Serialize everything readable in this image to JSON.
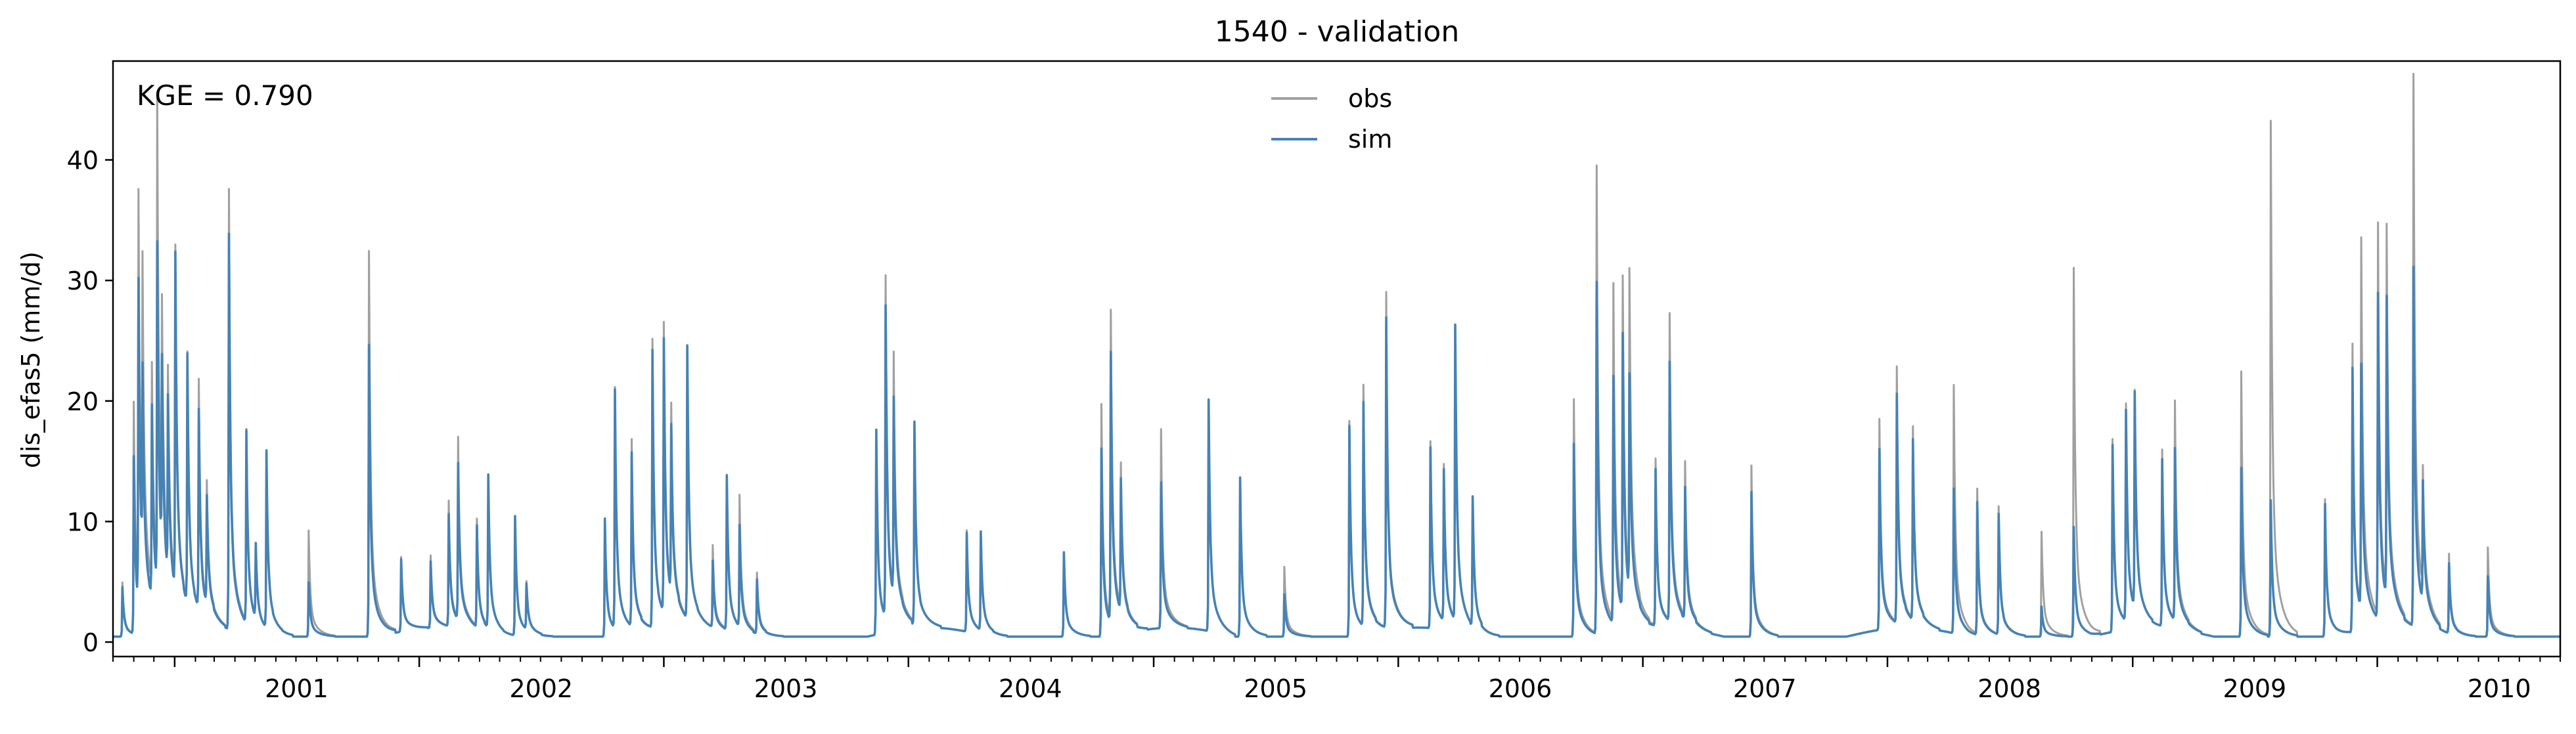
{
  "chart_data": {
    "type": "line",
    "title": "1540 - validation",
    "ylabel": "dis_efas5 (mm/d)",
    "xlabel": "",
    "annotation": "KGE = 0.790",
    "x_range": [
      "2000-10-01",
      "2010-10-01"
    ],
    "ylim": [
      -1.2,
      48.2
    ],
    "y_ticks": [
      0,
      10,
      20,
      30,
      40
    ],
    "x_tick_labels": [
      "2001",
      "2002",
      "2003",
      "2004",
      "2005",
      "2006",
      "2007",
      "2008",
      "2009",
      "2010"
    ],
    "grid": false,
    "legend_position": "top-center",
    "colors": {
      "obs": "#a0a0a0",
      "sim": "#4682b4"
    },
    "series": [
      {
        "name": "obs",
        "peaks": [
          [
            "2000-10-15",
            4.5
          ],
          [
            "2000-11-01",
            19.2
          ],
          [
            "2000-11-08",
            33.6
          ],
          [
            "2000-11-14",
            23.3
          ],
          [
            "2000-11-28",
            18.5
          ],
          [
            "2000-12-06",
            39.8
          ],
          [
            "2000-12-13",
            18.8
          ],
          [
            "2000-12-22",
            16.0
          ],
          [
            "2001-01-02",
            28.0
          ],
          [
            "2001-01-20",
            20.8
          ],
          [
            "2001-02-06",
            19.0
          ],
          [
            "2001-02-18",
            10.0
          ],
          [
            "2001-03-23",
            36.5
          ],
          [
            "2001-04-18",
            16.0
          ],
          [
            "2001-05-02",
            6.5
          ],
          [
            "2001-05-18",
            14.7
          ],
          [
            "2001-07-20",
            8.8
          ],
          [
            "2001-10-18",
            32.0
          ],
          [
            "2001-12-05",
            6.2
          ],
          [
            "2002-01-18",
            6.0
          ],
          [
            "2002-02-14",
            10.4
          ],
          [
            "2002-02-28",
            15.1
          ],
          [
            "2002-03-28",
            9.0
          ],
          [
            "2002-04-14",
            12.7
          ],
          [
            "2002-05-24",
            10.0
          ],
          [
            "2002-06-10",
            4.0
          ],
          [
            "2002-10-05",
            9.8
          ],
          [
            "2002-10-20",
            20.0
          ],
          [
            "2002-11-14",
            15.6
          ],
          [
            "2002-12-15",
            23.9
          ],
          [
            "2003-01-01",
            24.0
          ],
          [
            "2003-01-12",
            15.6
          ],
          [
            "2003-02-05",
            22.6
          ],
          [
            "2003-03-15",
            6.8
          ],
          [
            "2003-04-05",
            12.8
          ],
          [
            "2003-04-24",
            11.0
          ],
          [
            "2003-05-20",
            5.0
          ],
          [
            "2003-11-14",
            17.0
          ],
          [
            "2003-11-28",
            28.3
          ],
          [
            "2003-12-10",
            20.0
          ],
          [
            "2004-01-10",
            16.8
          ],
          [
            "2004-03-28",
            8.4
          ],
          [
            "2004-04-18",
            8.2
          ],
          [
            "2004-08-20",
            7.0
          ],
          [
            "2004-10-15",
            19.3
          ],
          [
            "2004-10-29",
            25.6
          ],
          [
            "2004-11-13",
            12.0
          ],
          [
            "2005-01-12",
            16.5
          ],
          [
            "2005-03-24",
            19.2
          ],
          [
            "2005-05-10",
            13.2
          ],
          [
            "2005-07-15",
            5.8
          ],
          [
            "2005-10-20",
            17.9
          ],
          [
            "2005-11-10",
            20.0
          ],
          [
            "2005-12-14",
            27.8
          ],
          [
            "2006-02-18",
            15.5
          ],
          [
            "2006-03-10",
            13.0
          ],
          [
            "2006-03-27",
            24.5
          ],
          [
            "2006-04-22",
            10.8
          ],
          [
            "2006-09-20",
            19.7
          ],
          [
            "2006-10-24",
            38.8
          ],
          [
            "2006-11-18",
            27.9
          ],
          [
            "2006-12-02",
            27.0
          ],
          [
            "2006-12-12",
            26.0
          ],
          [
            "2007-01-20",
            13.8
          ],
          [
            "2007-02-10",
            25.5
          ],
          [
            "2007-03-05",
            13.0
          ],
          [
            "2007-06-12",
            14.2
          ],
          [
            "2007-12-20",
            17.5
          ],
          [
            "2008-01-15",
            21.2
          ],
          [
            "2008-02-08",
            16.0
          ],
          [
            "2008-04-09",
            20.6
          ],
          [
            "2008-05-14",
            12.0
          ],
          [
            "2008-06-15",
            10.6
          ],
          [
            "2008-08-18",
            8.7
          ],
          [
            "2008-10-05",
            30.6
          ],
          [
            "2008-12-02",
            16.0
          ],
          [
            "2008-12-22",
            18.0
          ],
          [
            "2009-01-04",
            18.0
          ],
          [
            "2009-02-14",
            14.8
          ],
          [
            "2009-03-05",
            18.2
          ],
          [
            "2009-06-12",
            22.0
          ],
          [
            "2009-07-26",
            42.8
          ],
          [
            "2009-10-15",
            11.4
          ],
          [
            "2009-11-25",
            24.0
          ],
          [
            "2009-12-08",
            30.6
          ],
          [
            "2010-01-02",
            32.5
          ],
          [
            "2010-01-15",
            30.4
          ],
          [
            "2010-02-24",
            46.0
          ],
          [
            "2010-03-10",
            10.0
          ],
          [
            "2010-04-18",
            6.6
          ],
          [
            "2010-06-15",
            7.4
          ]
        ]
      },
      {
        "name": "sim",
        "peaks": [
          [
            "2000-10-15",
            4.1
          ],
          [
            "2000-11-01",
            14.7
          ],
          [
            "2000-11-08",
            27.0
          ],
          [
            "2000-11-14",
            15.8
          ],
          [
            "2000-11-28",
            16.0
          ],
          [
            "2000-12-06",
            28.5
          ],
          [
            "2000-12-13",
            16.2
          ],
          [
            "2000-12-22",
            14.8
          ],
          [
            "2001-01-02",
            28.0
          ],
          [
            "2001-01-20",
            20.7
          ],
          [
            "2001-02-06",
            16.5
          ],
          [
            "2001-02-18",
            9.0
          ],
          [
            "2001-03-23",
            32.8
          ],
          [
            "2001-04-18",
            16.0
          ],
          [
            "2001-05-02",
            6.5
          ],
          [
            "2001-05-18",
            14.7
          ],
          [
            "2001-07-20",
            4.5
          ],
          [
            "2001-10-18",
            24.2
          ],
          [
            "2001-12-05",
            6.0
          ],
          [
            "2002-01-18",
            5.5
          ],
          [
            "2002-02-14",
            9.3
          ],
          [
            "2002-02-28",
            13.0
          ],
          [
            "2002-03-28",
            8.5
          ],
          [
            "2002-04-14",
            12.7
          ],
          [
            "2002-05-24",
            10.0
          ],
          [
            "2002-06-10",
            3.8
          ],
          [
            "2002-10-05",
            9.8
          ],
          [
            "2002-10-20",
            19.8
          ],
          [
            "2002-11-14",
            14.5
          ],
          [
            "2002-12-15",
            23.0
          ],
          [
            "2003-01-01",
            22.7
          ],
          [
            "2003-01-12",
            14.0
          ],
          [
            "2003-02-05",
            22.6
          ],
          [
            "2003-03-15",
            5.5
          ],
          [
            "2003-04-05",
            12.8
          ],
          [
            "2003-04-24",
            8.5
          ],
          [
            "2003-05-20",
            4.5
          ],
          [
            "2003-11-14",
            17.0
          ],
          [
            "2003-11-28",
            25.8
          ],
          [
            "2003-12-10",
            16.5
          ],
          [
            "2004-01-10",
            16.8
          ],
          [
            "2004-03-28",
            8.2
          ],
          [
            "2004-04-18",
            8.2
          ],
          [
            "2004-08-20",
            7.0
          ],
          [
            "2004-10-15",
            15.6
          ],
          [
            "2004-10-29",
            22.4
          ],
          [
            "2004-11-13",
            11.0
          ],
          [
            "2005-01-12",
            12.1
          ],
          [
            "2005-03-24",
            19.2
          ],
          [
            "2005-05-10",
            13.2
          ],
          [
            "2005-07-15",
            3.5
          ],
          [
            "2005-10-20",
            17.5
          ],
          [
            "2005-11-10",
            18.6
          ],
          [
            "2005-12-14",
            25.7
          ],
          [
            "2006-02-18",
            15.0
          ],
          [
            "2006-03-10",
            12.6
          ],
          [
            "2006-03-27",
            24.5
          ],
          [
            "2006-04-22",
            10.8
          ],
          [
            "2006-09-20",
            16.0
          ],
          [
            "2006-10-24",
            29.2
          ],
          [
            "2006-11-18",
            20.5
          ],
          [
            "2006-12-02",
            22.9
          ],
          [
            "2006-12-12",
            18.0
          ],
          [
            "2007-01-20",
            13.0
          ],
          [
            "2007-02-10",
            21.5
          ],
          [
            "2007-03-05",
            11.0
          ],
          [
            "2007-06-12",
            12.0
          ],
          [
            "2007-12-20",
            15.0
          ],
          [
            "2008-01-15",
            19.0
          ],
          [
            "2008-02-08",
            15.0
          ],
          [
            "2008-04-09",
            12.0
          ],
          [
            "2008-05-14",
            11.0
          ],
          [
            "2008-06-15",
            10.0
          ],
          [
            "2008-08-18",
            2.5
          ],
          [
            "2008-10-05",
            9.1
          ],
          [
            "2008-12-02",
            15.5
          ],
          [
            "2008-12-22",
            17.5
          ],
          [
            "2009-01-04",
            17.9
          ],
          [
            "2009-02-14",
            14.0
          ],
          [
            "2009-03-05",
            14.3
          ],
          [
            "2009-06-12",
            14.0
          ],
          [
            "2009-07-26",
            11.3
          ],
          [
            "2009-10-15",
            11.0
          ],
          [
            "2009-11-25",
            22.0
          ],
          [
            "2009-12-08",
            20.3
          ],
          [
            "2010-01-02",
            27.0
          ],
          [
            "2010-01-15",
            25.0
          ],
          [
            "2010-02-24",
            30.0
          ],
          [
            "2010-03-10",
            10.0
          ],
          [
            "2010-04-18",
            5.8
          ],
          [
            "2010-06-15",
            5.0
          ]
        ]
      }
    ]
  }
}
